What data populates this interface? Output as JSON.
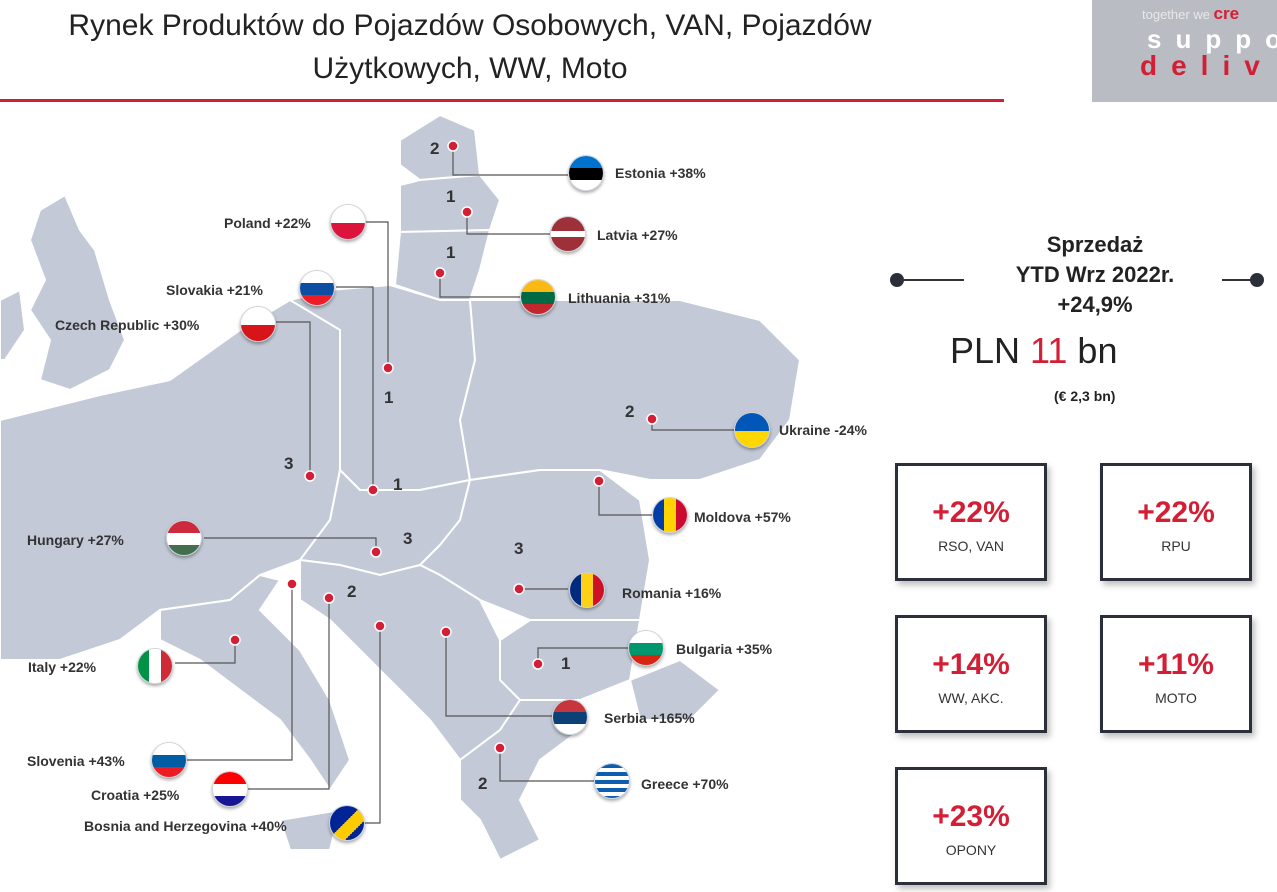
{
  "header": {
    "title_line1": "Rynek Produktów do Pojazdów Osobowych, VAN, Pojazdów",
    "title_line2": "Użytkowych, WW, Moto"
  },
  "logo": {
    "line1_prefix": "together we ",
    "line1_accent": "cre",
    "line2": "suppo",
    "line3": "deliv"
  },
  "map": {
    "countries": [
      {
        "name": "Estonia +38%"
      },
      {
        "name": "Latvia +27%"
      },
      {
        "name": "Lithuania +31%"
      },
      {
        "name": "Poland +22%"
      },
      {
        "name": "Slovakia +21%"
      },
      {
        "name": "Czech Republic +30%"
      },
      {
        "name": "Ukraine -24%"
      },
      {
        "name": "Moldova +57%"
      },
      {
        "name": "Hungary +27%"
      },
      {
        "name": "Romania +16%"
      },
      {
        "name": "Bulgaria +35%"
      },
      {
        "name": "Italy +22%"
      },
      {
        "name": "Serbia +165%"
      },
      {
        "name": "Slovenia +43%"
      },
      {
        "name": "Greece +70%"
      },
      {
        "name": "Croatia +25%"
      },
      {
        "name": "Bosnia and Herzegovina +40%"
      }
    ],
    "numbers": [
      "2",
      "1",
      "1",
      "1",
      "2",
      "3",
      "1",
      "3",
      "3",
      "2",
      "1",
      "2"
    ]
  },
  "sales": {
    "title_line1": "Sprzedaż",
    "title_line2": "YTD Wrz 2022r.",
    "title_line3": "+24,9%",
    "pln_prefix": "PLN ",
    "pln_value": "11",
    "pln_suffix": " bn",
    "eur": "(€ 2,3 bn)"
  },
  "kpis": [
    {
      "value": "+22%",
      "caption": "RSO, VAN"
    },
    {
      "value": "+22%",
      "caption": "RPU"
    },
    {
      "value": "+14%",
      "caption": "WW, AKC."
    },
    {
      "value": "+11%",
      "caption": "MOTO"
    },
    {
      "value": "+23%",
      "caption": "OPONY"
    }
  ],
  "colors": {
    "accent": "#d21f35",
    "map_fill": "#c3c9d6",
    "dark": "#2b2f3a"
  }
}
